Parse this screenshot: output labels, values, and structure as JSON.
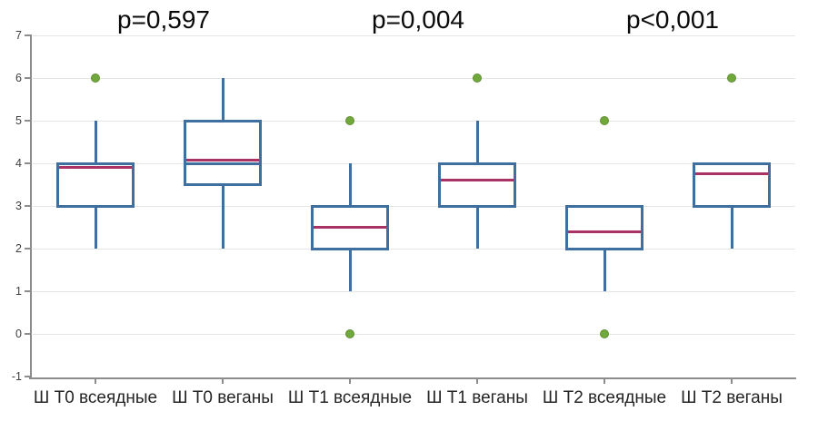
{
  "chart_data": {
    "type": "boxplot",
    "title": "",
    "xlabel": "",
    "ylabel": "",
    "grid": true,
    "legend": "none",
    "y_axis": {
      "min": -1,
      "max": 7,
      "tick_values": [
        7,
        6,
        5,
        4,
        3,
        2,
        1,
        0,
        -1
      ],
      "tick_labels": [
        "7",
        "6",
        "5",
        "4",
        "3",
        "2",
        "1",
        "0",
        "-1"
      ]
    },
    "categories": [
      "Ш Т0 всеядные",
      "Ш Т0 веганы",
      "Ш Т1 всеядные",
      "Ш Т1 веганы",
      "Ш Т2 всеядные",
      "Ш Т2 веганы"
    ],
    "boxes": [
      {
        "label": "Ш Т0 всеядные",
        "q1": 3,
        "q3": 4,
        "median": 3.9,
        "whisker_low": 2,
        "whisker_high": 5,
        "outliers": [
          6
        ]
      },
      {
        "label": "Ш Т0 веганы",
        "q1": 3.5,
        "q3": 5,
        "median": 4.07,
        "blue_line": 4.0,
        "whisker_low": 2,
        "whisker_high": 6,
        "outliers": []
      },
      {
        "label": "Ш Т1 всеядные",
        "q1": 2,
        "q3": 3,
        "median": 2.5,
        "whisker_low": 1,
        "whisker_high": 4,
        "outliers": [
          5,
          0
        ]
      },
      {
        "label": "Ш Т1 веганы",
        "q1": 3,
        "q3": 4,
        "median": 3.6,
        "whisker_low": 2,
        "whisker_high": 5,
        "outliers": [
          6
        ]
      },
      {
        "label": "Ш Т2 всеядные",
        "q1": 2,
        "q3": 3,
        "median": 2.4,
        "whisker_low": 1,
        "whisker_high": 3,
        "outliers": [
          5,
          0
        ]
      },
      {
        "label": "Ш Т2 веганы",
        "q1": 3,
        "q3": 4,
        "median": 3.75,
        "whisker_low": 2,
        "whisker_high": 4,
        "outliers": [
          6
        ]
      }
    ],
    "annotations": [
      {
        "text": "p=0,597",
        "between_categories": [
          0,
          1
        ]
      },
      {
        "text": "p=0,004",
        "between_categories": [
          2,
          3
        ]
      },
      {
        "text": "p<0,001",
        "between_categories": [
          4,
          5
        ]
      }
    ],
    "colors": {
      "box_border": "#3F6F9F",
      "median": "#AA3366",
      "blue_line": "#3F6F9F",
      "outlier_fill": "#70A83C",
      "outlier_edge": "#628F33",
      "gridline": "#E5E5E5",
      "axis": "#8C8C8C",
      "y_tick_label": "#404040",
      "category_label": "#262626",
      "p_label": "#0A0A0A",
      "background": "#FFFFFF"
    }
  }
}
